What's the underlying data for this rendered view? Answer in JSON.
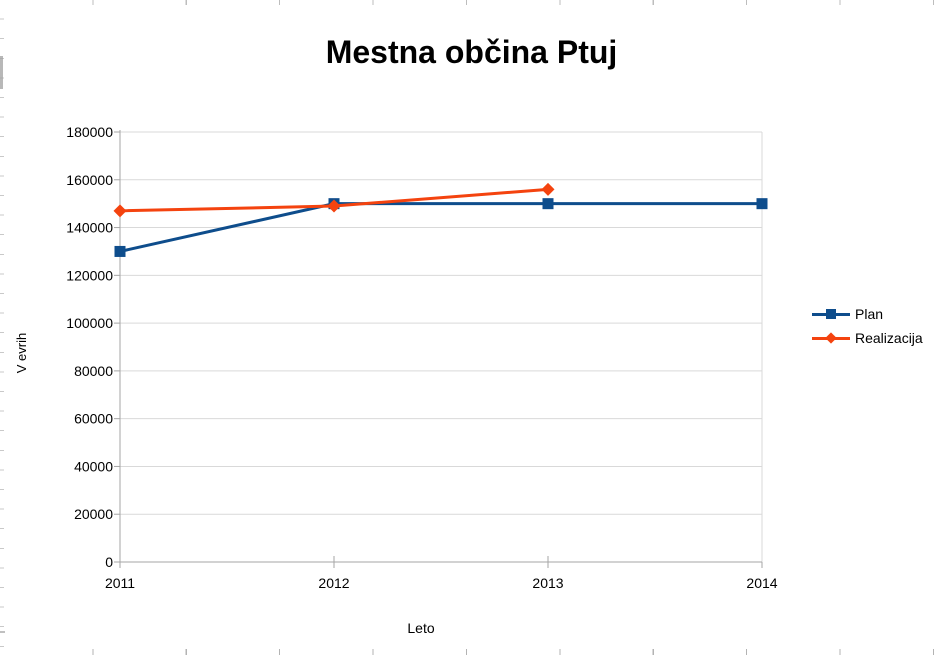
{
  "chart_data": {
    "type": "line",
    "title": "Mestna občina Ptuj",
    "xlabel": "Leto",
    "ylabel": "V evrih",
    "categories": [
      "2011",
      "2012",
      "2013",
      "2014"
    ],
    "series": [
      {
        "name": "Plan",
        "color": "#0e4d8c",
        "marker": "square",
        "values": [
          130000,
          150000,
          150000,
          150000
        ]
      },
      {
        "name": "Realizacija",
        "color": "#f4430f",
        "marker": "diamond",
        "values": [
          147000,
          149000,
          156000,
          null
        ]
      }
    ],
    "ylim": [
      0,
      180000
    ],
    "ytick_step": 20000,
    "yticks": [
      "0",
      "20000",
      "40000",
      "60000",
      "80000",
      "100000",
      "120000",
      "140000",
      "160000",
      "180000"
    ],
    "grid": "horizontal",
    "legend_position": "right",
    "colors": {
      "grid": "#d9d9d9",
      "axis": "#a6a6a6",
      "text": "#000000",
      "background": "#ffffff"
    }
  }
}
